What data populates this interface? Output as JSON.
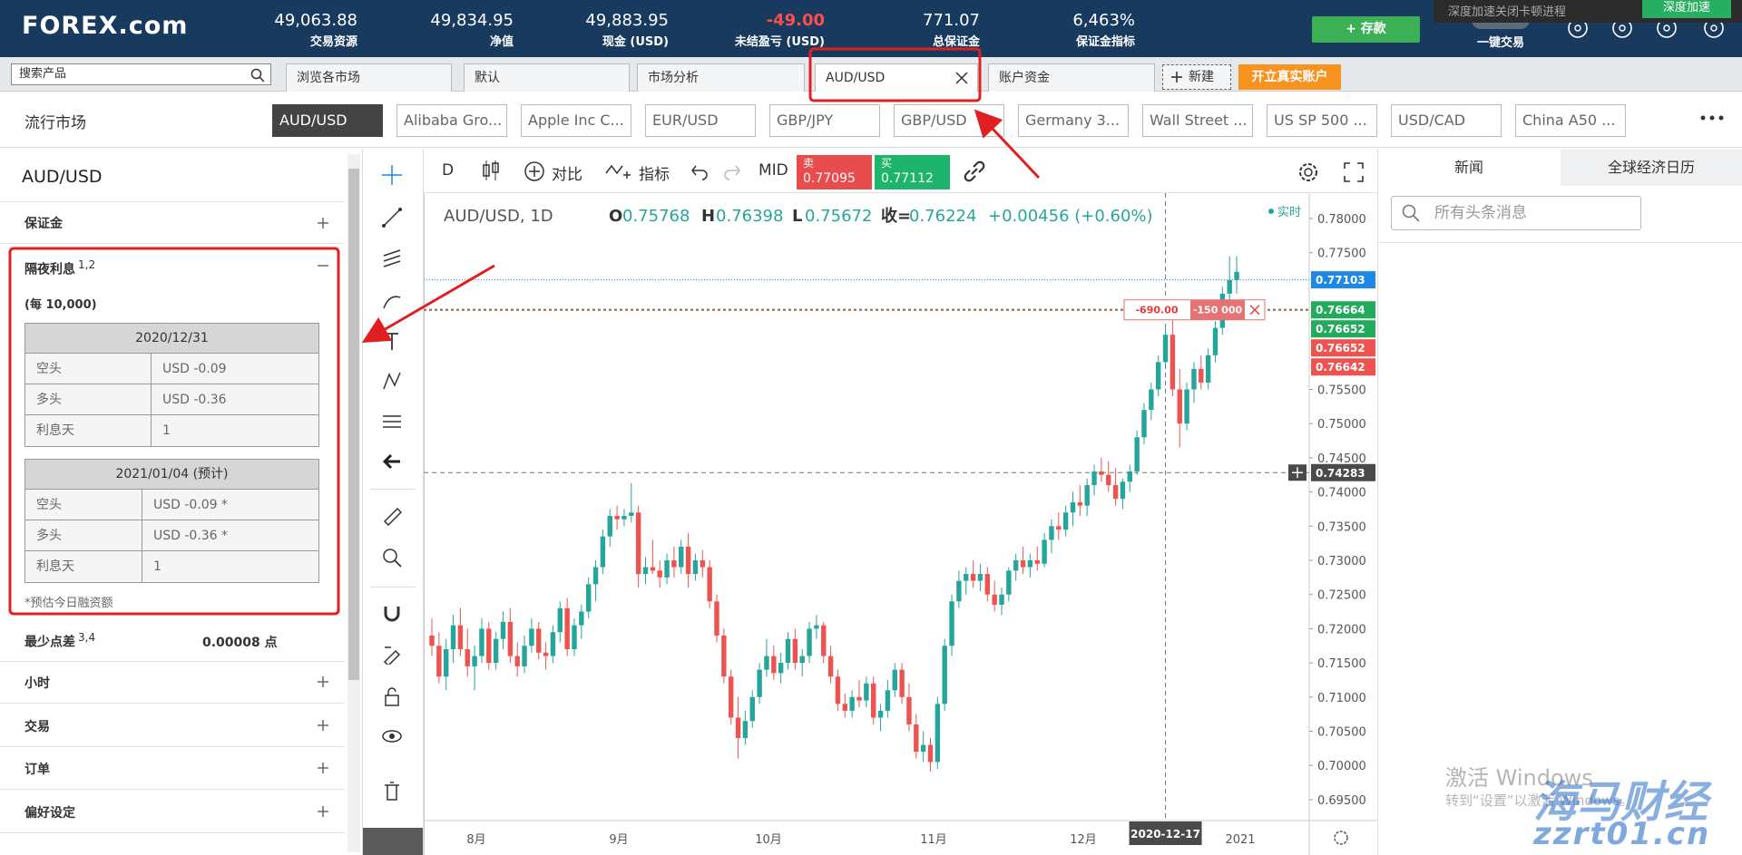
{
  "header": {
    "logo": "FOREX.com",
    "stats": [
      {
        "value": "49,063.88",
        "label": "交易资源"
      },
      {
        "value": "49,834.95",
        "label": "净值"
      },
      {
        "value": "49,883.95",
        "label": "现金 (USD)"
      },
      {
        "value": "-49.00",
        "label": "未结盈亏 (USD)"
      },
      {
        "value": "771.07",
        "label": "总保证金"
      },
      {
        "value": "6,463%",
        "label": "保证金指标"
      }
    ],
    "deposit": "+ 存款",
    "one_click": "一键交易"
  },
  "popup": {
    "text": "深度加速关闭卡顿进程",
    "button": "深度加速"
  },
  "tabs": {
    "search": "搜索产品",
    "items": [
      "浏览各市场",
      "默认",
      "市场分析",
      "AUD/USD",
      "账户资金"
    ],
    "new": "新建",
    "open_account": "开立真实账户"
  },
  "markets": {
    "title": "流行市场",
    "symbols": [
      "AUD/USD",
      "Alibaba Gro...",
      "Apple Inc C...",
      "EUR/USD",
      "GBP/JPY",
      "GBP/USD",
      "Germany 3...",
      "Wall Street ...",
      "US SP 500 ...",
      "USD/CAD",
      "China A50 ..."
    ]
  },
  "instrument": {
    "symbol": "AUD/USD",
    "margin": "保证金",
    "swap": {
      "title": "隔夜利息",
      "note_ref": "1,2",
      "unit": "(每 10,000)",
      "tables": [
        {
          "date": "2020/12/31",
          "rows": [
            [
              "空头",
              "USD -0.09"
            ],
            [
              "多头",
              "USD -0.36"
            ],
            [
              "利息天",
              "1"
            ]
          ]
        },
        {
          "date": "2021/01/04 (预计)",
          "rows": [
            [
              "空头",
              "USD -0.09 *"
            ],
            [
              "多头",
              "USD -0.36 *"
            ],
            [
              "利息天",
              "1"
            ]
          ]
        }
      ],
      "footnote": "*预估今日融资额"
    },
    "min_spread": {
      "label": "最少点差",
      "note_ref": "3,4",
      "value": "0.00008 点"
    },
    "sections": [
      "小时",
      "交易",
      "订单",
      "偏好设定"
    ]
  },
  "toolbar": {
    "interval": "D",
    "compare": "对比",
    "indicators": "指标",
    "mid": "MID",
    "sell": {
      "label": "卖",
      "price": "0.77095"
    },
    "buy": {
      "label": "买",
      "price": "0.77112"
    }
  },
  "chart": {
    "type": "candlestick",
    "legend": {
      "symbol": "AUD/USD, 1D",
      "open_label": "O",
      "open": "0.75768",
      "high_label": "H",
      "high": "0.76398",
      "low_label": "L",
      "low": "0.75672",
      "close_label": "收=",
      "close": "0.76224",
      "change": "+0.00456 (+0.60%)"
    },
    "status": "实时",
    "ylim": [
      0.69194,
      0.78371
    ],
    "yticks": [
      {
        "value": 0.78,
        "label": "0.78000"
      },
      {
        "value": 0.775,
        "label": "0.77500"
      },
      {
        "value": 0.755,
        "label": "0.75500"
      },
      {
        "value": 0.75,
        "label": "0.75000"
      },
      {
        "value": 0.745,
        "label": "0.74500"
      },
      {
        "value": 0.74,
        "label": "0.74000"
      },
      {
        "value": 0.735,
        "label": "0.73500"
      },
      {
        "value": 0.73,
        "label": "0.73000"
      },
      {
        "value": 0.725,
        "label": "0.72500"
      },
      {
        "value": 0.72,
        "label": "0.72000"
      },
      {
        "value": 0.715,
        "label": "0.71500"
      },
      {
        "value": 0.71,
        "label": "0.71000"
      },
      {
        "value": 0.705,
        "label": "0.70500"
      },
      {
        "value": 0.7,
        "label": "0.70000"
      },
      {
        "value": 0.695,
        "label": "0.69500"
      }
    ],
    "x_labels": [
      "8月",
      "9月",
      "10月",
      "11月",
      "12月",
      "2021"
    ],
    "up_color": "#26a69a",
    "down_color": "#ef5350",
    "candles": [
      [
        0.719,
        0.7215,
        0.716,
        0.7175
      ],
      [
        0.7175,
        0.7195,
        0.712,
        0.713
      ],
      [
        0.713,
        0.7185,
        0.711,
        0.717
      ],
      [
        0.717,
        0.722,
        0.715,
        0.7205
      ],
      [
        0.7205,
        0.723,
        0.716,
        0.717
      ],
      [
        0.717,
        0.72,
        0.713,
        0.7145
      ],
      [
        0.7145,
        0.7175,
        0.711,
        0.716
      ],
      [
        0.716,
        0.7215,
        0.715,
        0.72
      ],
      [
        0.72,
        0.721,
        0.714,
        0.715
      ],
      [
        0.715,
        0.7195,
        0.714,
        0.7185
      ],
      [
        0.7185,
        0.7225,
        0.717,
        0.721
      ],
      [
        0.721,
        0.723,
        0.715,
        0.716
      ],
      [
        0.716,
        0.718,
        0.713,
        0.7145
      ],
      [
        0.7145,
        0.719,
        0.7135,
        0.7175
      ],
      [
        0.7175,
        0.7215,
        0.7165,
        0.72
      ],
      [
        0.72,
        0.721,
        0.7155,
        0.7165
      ],
      [
        0.7165,
        0.718,
        0.714,
        0.716
      ],
      [
        0.716,
        0.7205,
        0.715,
        0.7195
      ],
      [
        0.7195,
        0.724,
        0.718,
        0.723
      ],
      [
        0.723,
        0.7245,
        0.716,
        0.717
      ],
      [
        0.717,
        0.7215,
        0.716,
        0.7205
      ],
      [
        0.7205,
        0.7235,
        0.7185,
        0.7225
      ],
      [
        0.7225,
        0.7275,
        0.7215,
        0.7265
      ],
      [
        0.7265,
        0.73,
        0.724,
        0.729
      ],
      [
        0.729,
        0.7345,
        0.728,
        0.7335
      ],
      [
        0.7335,
        0.7375,
        0.732,
        0.7365
      ],
      [
        0.7365,
        0.738,
        0.7345,
        0.736
      ],
      [
        0.736,
        0.7375,
        0.735,
        0.7365
      ],
      [
        0.7365,
        0.7413,
        0.7355,
        0.737
      ],
      [
        0.737,
        0.738,
        0.726,
        0.728
      ],
      [
        0.728,
        0.7305,
        0.7265,
        0.729
      ],
      [
        0.729,
        0.733,
        0.728,
        0.7285
      ],
      [
        0.7285,
        0.73,
        0.726,
        0.7275
      ],
      [
        0.7275,
        0.731,
        0.7265,
        0.73
      ],
      [
        0.73,
        0.732,
        0.7275,
        0.729
      ],
      [
        0.729,
        0.733,
        0.728,
        0.732
      ],
      [
        0.732,
        0.734,
        0.726,
        0.728
      ],
      [
        0.728,
        0.731,
        0.727,
        0.73
      ],
      [
        0.73,
        0.7315,
        0.7275,
        0.729
      ],
      [
        0.729,
        0.73,
        0.723,
        0.724
      ],
      [
        0.724,
        0.725,
        0.718,
        0.719
      ],
      [
        0.719,
        0.72,
        0.712,
        0.713
      ],
      [
        0.713,
        0.714,
        0.706,
        0.707
      ],
      [
        0.707,
        0.71,
        0.701,
        0.704
      ],
      [
        0.704,
        0.708,
        0.703,
        0.7065
      ],
      [
        0.7065,
        0.711,
        0.7055,
        0.71
      ],
      [
        0.71,
        0.715,
        0.709,
        0.714
      ],
      [
        0.714,
        0.7185,
        0.713,
        0.716
      ],
      [
        0.716,
        0.7175,
        0.7125,
        0.7135
      ],
      [
        0.7135,
        0.7165,
        0.712,
        0.715
      ],
      [
        0.715,
        0.7195,
        0.714,
        0.7185
      ],
      [
        0.7185,
        0.72,
        0.714,
        0.715
      ],
      [
        0.715,
        0.717,
        0.713,
        0.716
      ],
      [
        0.716,
        0.721,
        0.715,
        0.72
      ],
      [
        0.72,
        0.722,
        0.7185,
        0.7205
      ],
      [
        0.7205,
        0.721,
        0.715,
        0.716
      ],
      [
        0.716,
        0.7175,
        0.712,
        0.713
      ],
      [
        0.713,
        0.714,
        0.708,
        0.709
      ],
      [
        0.709,
        0.7105,
        0.707,
        0.708
      ],
      [
        0.708,
        0.711,
        0.707,
        0.71
      ],
      [
        0.71,
        0.7125,
        0.7085,
        0.7095
      ],
      [
        0.7095,
        0.713,
        0.7085,
        0.712
      ],
      [
        0.712,
        0.713,
        0.706,
        0.707
      ],
      [
        0.707,
        0.709,
        0.705,
        0.708
      ],
      [
        0.708,
        0.7125,
        0.707,
        0.711
      ],
      [
        0.711,
        0.715,
        0.71,
        0.714
      ],
      [
        0.714,
        0.715,
        0.709,
        0.71
      ],
      [
        0.71,
        0.712,
        0.705,
        0.706
      ],
      [
        0.706,
        0.7075,
        0.701,
        0.702
      ],
      [
        0.702,
        0.705,
        0.7005,
        0.703
      ],
      [
        0.703,
        0.704,
        0.6991,
        0.7005
      ],
      [
        0.7005,
        0.71,
        0.6995,
        0.709
      ],
      [
        0.709,
        0.7185,
        0.708,
        0.7175
      ],
      [
        0.7175,
        0.725,
        0.716,
        0.724
      ],
      [
        0.724,
        0.7285,
        0.723,
        0.727
      ],
      [
        0.727,
        0.729,
        0.725,
        0.728
      ],
      [
        0.728,
        0.73,
        0.726,
        0.727
      ],
      [
        0.727,
        0.7295,
        0.7255,
        0.728
      ],
      [
        0.728,
        0.729,
        0.724,
        0.725
      ],
      [
        0.725,
        0.727,
        0.7225,
        0.7235
      ],
      [
        0.7235,
        0.726,
        0.722,
        0.725
      ],
      [
        0.725,
        0.729,
        0.724,
        0.7285
      ],
      [
        0.7285,
        0.731,
        0.727,
        0.73
      ],
      [
        0.73,
        0.732,
        0.728,
        0.729
      ],
      [
        0.729,
        0.731,
        0.7275,
        0.73
      ],
      [
        0.73,
        0.732,
        0.7285,
        0.7295
      ],
      [
        0.7295,
        0.734,
        0.729,
        0.733
      ],
      [
        0.733,
        0.736,
        0.731,
        0.735
      ],
      [
        0.735,
        0.737,
        0.733,
        0.7345
      ],
      [
        0.7345,
        0.738,
        0.7335,
        0.737
      ],
      [
        0.737,
        0.74,
        0.735,
        0.7385
      ],
      [
        0.7385,
        0.741,
        0.7365,
        0.738
      ],
      [
        0.738,
        0.742,
        0.7365,
        0.741
      ],
      [
        0.741,
        0.744,
        0.7395,
        0.743
      ],
      [
        0.743,
        0.745,
        0.7415,
        0.7425
      ],
      [
        0.7425,
        0.7445,
        0.74,
        0.741
      ],
      [
        0.741,
        0.7435,
        0.738,
        0.739
      ],
      [
        0.739,
        0.742,
        0.7375,
        0.7415
      ],
      [
        0.7415,
        0.744,
        0.74,
        0.743
      ],
      [
        0.743,
        0.749,
        0.7425,
        0.748
      ],
      [
        0.748,
        0.753,
        0.747,
        0.752
      ],
      [
        0.752,
        0.756,
        0.7505,
        0.755
      ],
      [
        0.755,
        0.76,
        0.754,
        0.759
      ],
      [
        0.759,
        0.764,
        0.758,
        0.763
      ],
      [
        0.763,
        0.766,
        0.754,
        0.755
      ],
      [
        0.755,
        0.758,
        0.7465,
        0.75
      ],
      [
        0.75,
        0.756,
        0.749,
        0.755
      ],
      [
        0.755,
        0.759,
        0.753,
        0.758
      ],
      [
        0.758,
        0.76,
        0.755,
        0.756
      ],
      [
        0.756,
        0.761,
        0.755,
        0.76
      ],
      [
        0.76,
        0.765,
        0.759,
        0.764
      ],
      [
        0.764,
        0.77,
        0.763,
        0.769
      ],
      [
        0.769,
        0.7745,
        0.768,
        0.771
      ],
      [
        0.771,
        0.7745,
        0.769,
        0.7722
      ]
    ],
    "last_price": {
      "value": 0.77103,
      "label": "0.77103",
      "color": "#1e88e5"
    },
    "position": {
      "pnl": "-690.00",
      "size": "-150 000"
    },
    "tags": [
      {
        "value": 0.76664,
        "label": "0.76664",
        "color": "#22ab5b"
      },
      {
        "value": 0.76652,
        "label": "0.76652",
        "color": "#22ab5b"
      },
      {
        "value": 0.76652,
        "label": "0.76652",
        "color": "#ef5350"
      },
      {
        "value": 0.76642,
        "label": "0.76642",
        "color": "#ef5350"
      }
    ],
    "crosshair": {
      "date": "2020-12-17",
      "price": {
        "value": 0.74283,
        "label": "0.74283"
      }
    }
  },
  "right_panel": {
    "tabs": [
      "新闻",
      "全球经济日历"
    ],
    "search": "所有头条消息"
  },
  "watermarks": {
    "windows_title": "激活 Windows",
    "windows_hint": "转到“设置”以激活 Windows。",
    "site_name": "海马财经",
    "site_url": "zzrt01.cn"
  }
}
